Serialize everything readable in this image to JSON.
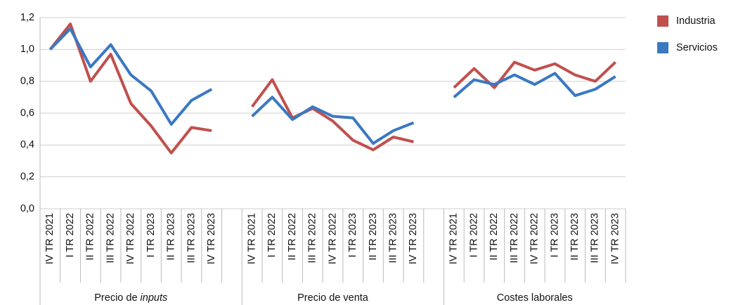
{
  "chart_data": {
    "type": "line",
    "categories": [
      "IV TR 2021",
      "I TR 2022",
      "II TR 2022",
      "III TR 2022",
      "IV TR 2022",
      "I TR 2023",
      "II TR 2023",
      "III TR 2023",
      "IV TR 2023",
      null,
      "IV TR 2021",
      "I TR 2022",
      "II TR 2022",
      "III TR 2022",
      "IV TR 2022",
      "I TR 2023",
      "II TR 2023",
      "III TR 2023",
      "IV TR 2023",
      null,
      "IV TR 2021",
      "I TR 2022",
      "II TR 2022",
      "III TR 2022",
      "IV TR 2022",
      "I TR 2023",
      "II TR 2023",
      "III TR 2023",
      "IV TR 2023"
    ],
    "groups": [
      [
        "Precio de ",
        "inputs"
      ],
      [
        "Precio de venta"
      ],
      [
        "Costes laborales"
      ]
    ],
    "series": [
      {
        "name": "Industria",
        "color": "#c0504d",
        "values": [
          1.0,
          1.16,
          0.8,
          0.97,
          0.66,
          0.52,
          0.35,
          0.51,
          0.49,
          null,
          0.64,
          0.81,
          0.57,
          0.63,
          0.55,
          0.43,
          0.37,
          0.45,
          0.42,
          null,
          0.76,
          0.88,
          0.76,
          0.92,
          0.87,
          0.91,
          0.84,
          0.8,
          0.92
        ]
      },
      {
        "name": "Servicios",
        "color": "#3a78c2",
        "values": [
          1.0,
          1.13,
          0.89,
          1.03,
          0.84,
          0.74,
          0.53,
          0.68,
          0.75,
          null,
          0.58,
          0.7,
          0.56,
          0.64,
          0.58,
          0.57,
          0.41,
          0.49,
          0.54,
          null,
          0.7,
          0.81,
          0.78,
          0.84,
          0.78,
          0.85,
          0.71,
          0.75,
          0.83
        ]
      }
    ],
    "ylim": [
      0,
      1.2
    ],
    "yticks": [
      {
        "value": 0,
        "label": "0,0"
      },
      {
        "value": 0.2,
        "label": "0,2"
      },
      {
        "value": 0.4,
        "label": "0,4"
      },
      {
        "value": 0.6,
        "label": "0,6"
      },
      {
        "value": 0.8,
        "label": "0,8"
      },
      {
        "value": 1,
        "label": "1,0"
      },
      {
        "value": 1.2,
        "label": "1,2"
      }
    ],
    "grid": true,
    "legend": "top-right"
  }
}
